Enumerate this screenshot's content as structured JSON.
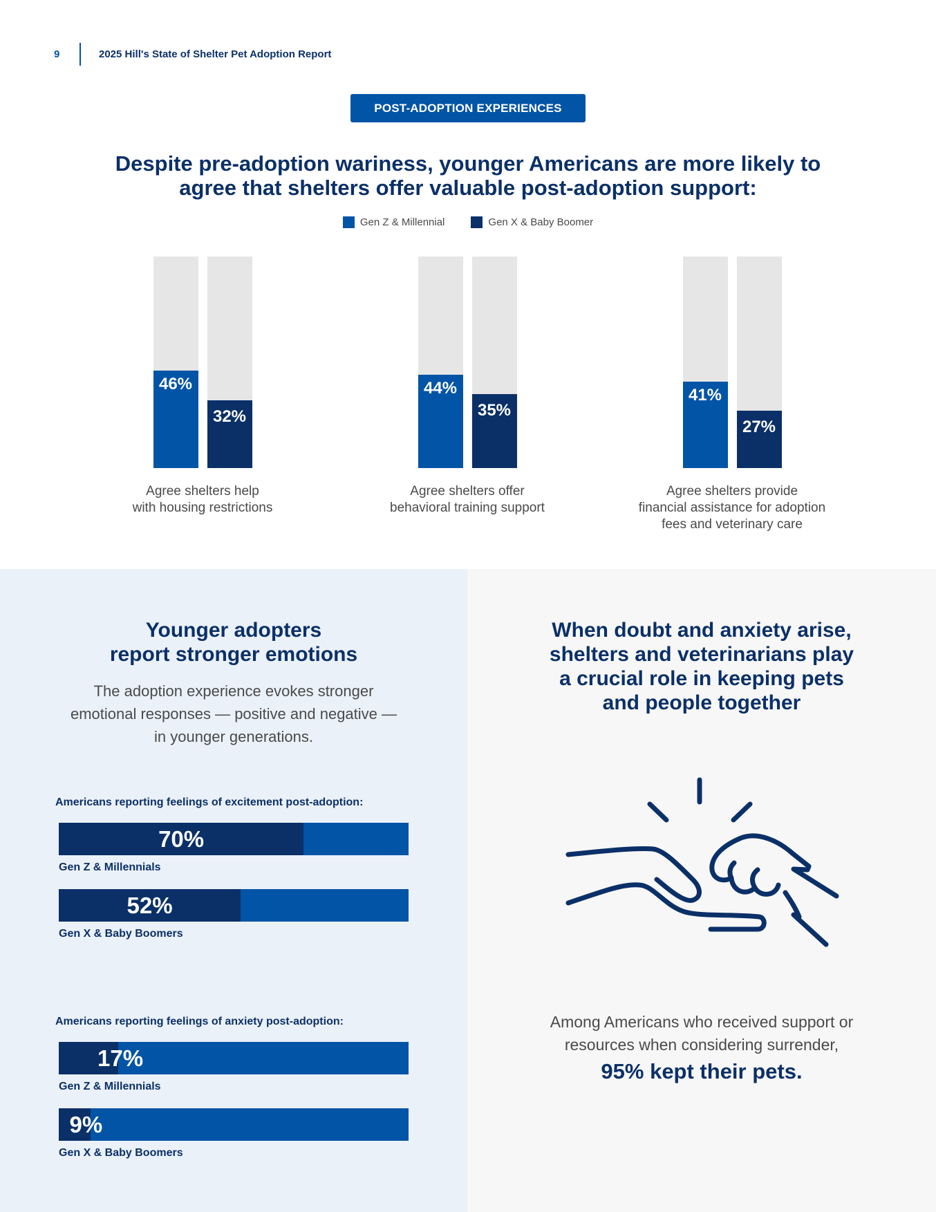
{
  "header": {
    "page_number": "9",
    "report_title": "2025 Hill's State of Shelter Pet Adoption Report"
  },
  "section_tag": "POST-ADOPTION EXPERIENCES",
  "main_heading": {
    "line1": "Despite pre-adoption wariness, younger Americans are more likely to",
    "line2": "agree that shelters offer valuable post-adoption support:"
  },
  "colors": {
    "gen_z_millennial": "#0254a6",
    "gen_x_boomer": "#0b3068",
    "track": "#e6e6e6"
  },
  "chart_data": [
    {
      "type": "bar",
      "categories": [
        "Agree shelters help with housing restrictions",
        "Agree shelters offer behavioral training support",
        "Agree shelters provide financial assistance for adoption fees and veterinary care"
      ],
      "category_lines": [
        [
          "Agree shelters help",
          "with housing restrictions"
        ],
        [
          "Agree shelters offer",
          "behavioral training support"
        ],
        [
          "Agree shelters provide",
          "financial assistance for adoption",
          "fees and veterinary care"
        ]
      ],
      "series": [
        {
          "name": "Gen Z & Millennial",
          "values": [
            46,
            44,
            41
          ],
          "labels": [
            "46%",
            "44%",
            "41%"
          ]
        },
        {
          "name": "Gen X & Baby Boomer",
          "values": [
            32,
            35,
            27
          ],
          "labels": [
            "32%",
            "35%",
            "27%"
          ]
        }
      ],
      "ylim": [
        0,
        100
      ],
      "unit": "%",
      "legend": "top-center",
      "grid": false
    },
    {
      "type": "bar",
      "orientation": "horizontal",
      "title": "Americans reporting feelings of excitement post-adoption:",
      "categories": [
        "Gen Z & Millennials",
        "Gen X & Baby Boomers"
      ],
      "values": [
        70,
        52
      ],
      "labels": [
        "70%",
        "52%"
      ],
      "xlim": [
        0,
        100
      ],
      "unit": "%"
    },
    {
      "type": "bar",
      "orientation": "horizontal",
      "title": "Americans reporting feelings of anxiety post-adoption:",
      "categories": [
        "Gen Z & Millennials",
        "Gen X & Baby Boomers"
      ],
      "values": [
        17,
        9
      ],
      "labels": [
        "17%",
        "9%"
      ],
      "xlim": [
        0,
        100
      ],
      "unit": "%"
    }
  ],
  "left_panel": {
    "heading_line1": "Younger adopters",
    "heading_line2": "report stronger emotions",
    "body_line1": "The adoption experience evokes stronger",
    "body_line2": "emotional responses — positive and negative —",
    "body_line3": "in younger generations."
  },
  "right_panel": {
    "heading_line1": "When doubt and anxiety arise,",
    "heading_line2": "shelters and veterinarians play",
    "heading_line3": "a crucial role in keeping pets",
    "heading_line4": "and people together",
    "icon": "hand-and-paw-icon",
    "stat_line1": "Among Americans who received support or",
    "stat_line2": "resources when considering surrender,",
    "stat_highlight": "95% kept their pets."
  }
}
